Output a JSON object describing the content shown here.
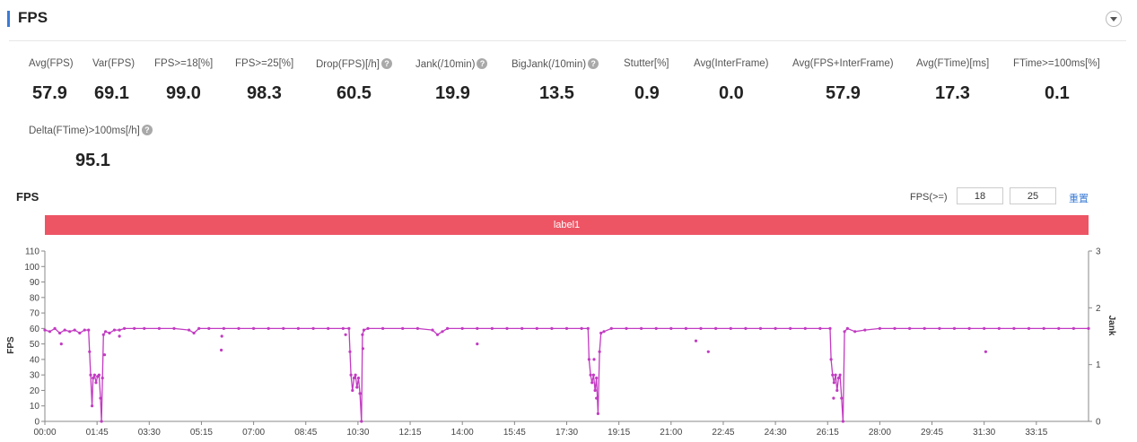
{
  "header": {
    "title": "FPS"
  },
  "metrics": [
    {
      "label": "Avg(FPS)",
      "value": "57.9",
      "help": false
    },
    {
      "label": "Var(FPS)",
      "value": "69.1",
      "help": false
    },
    {
      "label": "FPS>=18[%]",
      "value": "99.0",
      "help": false
    },
    {
      "label": "FPS>=25[%]",
      "value": "98.3",
      "help": false
    },
    {
      "label": "Drop(FPS)[/h]",
      "value": "60.5",
      "help": true
    },
    {
      "label": "Jank(/10min)",
      "value": "19.9",
      "help": true
    },
    {
      "label": "BigJank(/10min)",
      "value": "13.5",
      "help": true
    },
    {
      "label": "Stutter[%]",
      "value": "0.9",
      "help": false
    },
    {
      "label": "Avg(InterFrame)",
      "value": "0.0",
      "help": false
    },
    {
      "label": "Avg(FPS+InterFrame)",
      "value": "57.9",
      "help": false
    },
    {
      "label": "Avg(FTime)[ms]",
      "value": "17.3",
      "help": false
    },
    {
      "label": "FTime>=100ms[%]",
      "value": "0.1",
      "help": false
    },
    {
      "label": "Delta(FTime)>100ms[/h]",
      "value": "95.1",
      "help": true
    }
  ],
  "controls": {
    "threshold_label": "FPS(>=)",
    "threshold_low": "18",
    "threshold_high": "25",
    "reset_label": "重置"
  },
  "chart_data": {
    "type": "line",
    "title": "FPS",
    "label_band": "label1",
    "xlabel": "",
    "ylabel": "FPS",
    "y2label": "Jank",
    "x_ticks": [
      "00:00",
      "01:45",
      "03:30",
      "05:15",
      "07:00",
      "08:45",
      "10:30",
      "12:15",
      "14:00",
      "15:45",
      "17:30",
      "19:15",
      "21:00",
      "22:45",
      "24:30",
      "26:15",
      "28:00",
      "29:45",
      "31:30",
      "33:15"
    ],
    "y_ticks": [
      0,
      10,
      20,
      30,
      40,
      50,
      60,
      70,
      80,
      90,
      100,
      110
    ],
    "y2_ticks": [
      0,
      1,
      2,
      3
    ],
    "xlim_seconds": [
      0,
      2100
    ],
    "ylim": [
      0,
      110
    ],
    "y2lim": [
      0,
      3
    ],
    "colors": {
      "series": "#c23bc2",
      "band": "#ed5565",
      "axis": "#888888"
    },
    "series": [
      {
        "values": [
          [
            0,
            59
          ],
          [
            10,
            58
          ],
          [
            20,
            60
          ],
          [
            30,
            57
          ],
          [
            40,
            59
          ],
          [
            50,
            58
          ],
          [
            60,
            59
          ],
          [
            70,
            57
          ],
          [
            80,
            59
          ],
          [
            88,
            59
          ],
          [
            90,
            45
          ],
          [
            92,
            30
          ],
          [
            95,
            10
          ],
          [
            97,
            28
          ],
          [
            100,
            30
          ],
          [
            103,
            25
          ],
          [
            106,
            29
          ],
          [
            109,
            30
          ],
          [
            112,
            15
          ],
          [
            114,
            0
          ],
          [
            116,
            28
          ],
          [
            118,
            56
          ],
          [
            122,
            58
          ],
          [
            130,
            57
          ],
          [
            140,
            59
          ],
          [
            150,
            59
          ],
          [
            160,
            60
          ],
          [
            180,
            60
          ],
          [
            200,
            60
          ],
          [
            230,
            60
          ],
          [
            260,
            60
          ],
          [
            290,
            59
          ],
          [
            300,
            57
          ],
          [
            310,
            60
          ],
          [
            330,
            60
          ],
          [
            360,
            60
          ],
          [
            390,
            60
          ],
          [
            420,
            60
          ],
          [
            450,
            60
          ],
          [
            480,
            60
          ],
          [
            510,
            60
          ],
          [
            540,
            60
          ],
          [
            570,
            60
          ],
          [
            600,
            60
          ],
          [
            612,
            60
          ],
          [
            614,
            45
          ],
          [
            616,
            30
          ],
          [
            619,
            20
          ],
          [
            622,
            28
          ],
          [
            625,
            30
          ],
          [
            628,
            22
          ],
          [
            631,
            28
          ],
          [
            634,
            18
          ],
          [
            637,
            0
          ],
          [
            639,
            56
          ],
          [
            642,
            59
          ],
          [
            650,
            60
          ],
          [
            680,
            60
          ],
          [
            720,
            60
          ],
          [
            750,
            60
          ],
          [
            780,
            59
          ],
          [
            790,
            56
          ],
          [
            800,
            58
          ],
          [
            810,
            60
          ],
          [
            840,
            60
          ],
          [
            870,
            60
          ],
          [
            900,
            60
          ],
          [
            930,
            60
          ],
          [
            960,
            60
          ],
          [
            990,
            60
          ],
          [
            1020,
            60
          ],
          [
            1050,
            60
          ],
          [
            1080,
            60
          ],
          [
            1093,
            60
          ],
          [
            1095,
            40
          ],
          [
            1098,
            30
          ],
          [
            1101,
            25
          ],
          [
            1104,
            30
          ],
          [
            1107,
            20
          ],
          [
            1110,
            28
          ],
          [
            1113,
            5
          ],
          [
            1116,
            45
          ],
          [
            1119,
            57
          ],
          [
            1125,
            58
          ],
          [
            1140,
            60
          ],
          [
            1170,
            60
          ],
          [
            1200,
            60
          ],
          [
            1230,
            60
          ],
          [
            1260,
            60
          ],
          [
            1290,
            60
          ],
          [
            1320,
            60
          ],
          [
            1350,
            60
          ],
          [
            1380,
            60
          ],
          [
            1410,
            60
          ],
          [
            1440,
            60
          ],
          [
            1470,
            60
          ],
          [
            1500,
            60
          ],
          [
            1530,
            60
          ],
          [
            1560,
            60
          ],
          [
            1580,
            60
          ],
          [
            1582,
            40
          ],
          [
            1585,
            30
          ],
          [
            1588,
            25
          ],
          [
            1591,
            30
          ],
          [
            1594,
            20
          ],
          [
            1597,
            28
          ],
          [
            1600,
            30
          ],
          [
            1603,
            15
          ],
          [
            1606,
            0
          ],
          [
            1609,
            58
          ],
          [
            1615,
            60
          ],
          [
            1630,
            58
          ],
          [
            1650,
            59
          ],
          [
            1680,
            60
          ],
          [
            1710,
            60
          ],
          [
            1740,
            60
          ],
          [
            1770,
            60
          ],
          [
            1800,
            60
          ],
          [
            1830,
            60
          ],
          [
            1860,
            60
          ],
          [
            1890,
            60
          ],
          [
            1920,
            60
          ],
          [
            1950,
            60
          ],
          [
            1980,
            60
          ],
          [
            2010,
            60
          ],
          [
            2040,
            60
          ],
          [
            2070,
            60
          ],
          [
            2100,
            60
          ]
        ]
      }
    ],
    "outlier_points": [
      [
        33,
        50
      ],
      [
        120,
        43
      ],
      [
        150,
        55
      ],
      [
        355,
        46
      ],
      [
        356,
        55
      ],
      [
        605,
        56
      ],
      [
        640,
        47
      ],
      [
        870,
        50
      ],
      [
        1105,
        40
      ],
      [
        1110,
        15
      ],
      [
        1310,
        52
      ],
      [
        1335,
        45
      ],
      [
        1587,
        15
      ],
      [
        1893,
        45
      ]
    ]
  }
}
